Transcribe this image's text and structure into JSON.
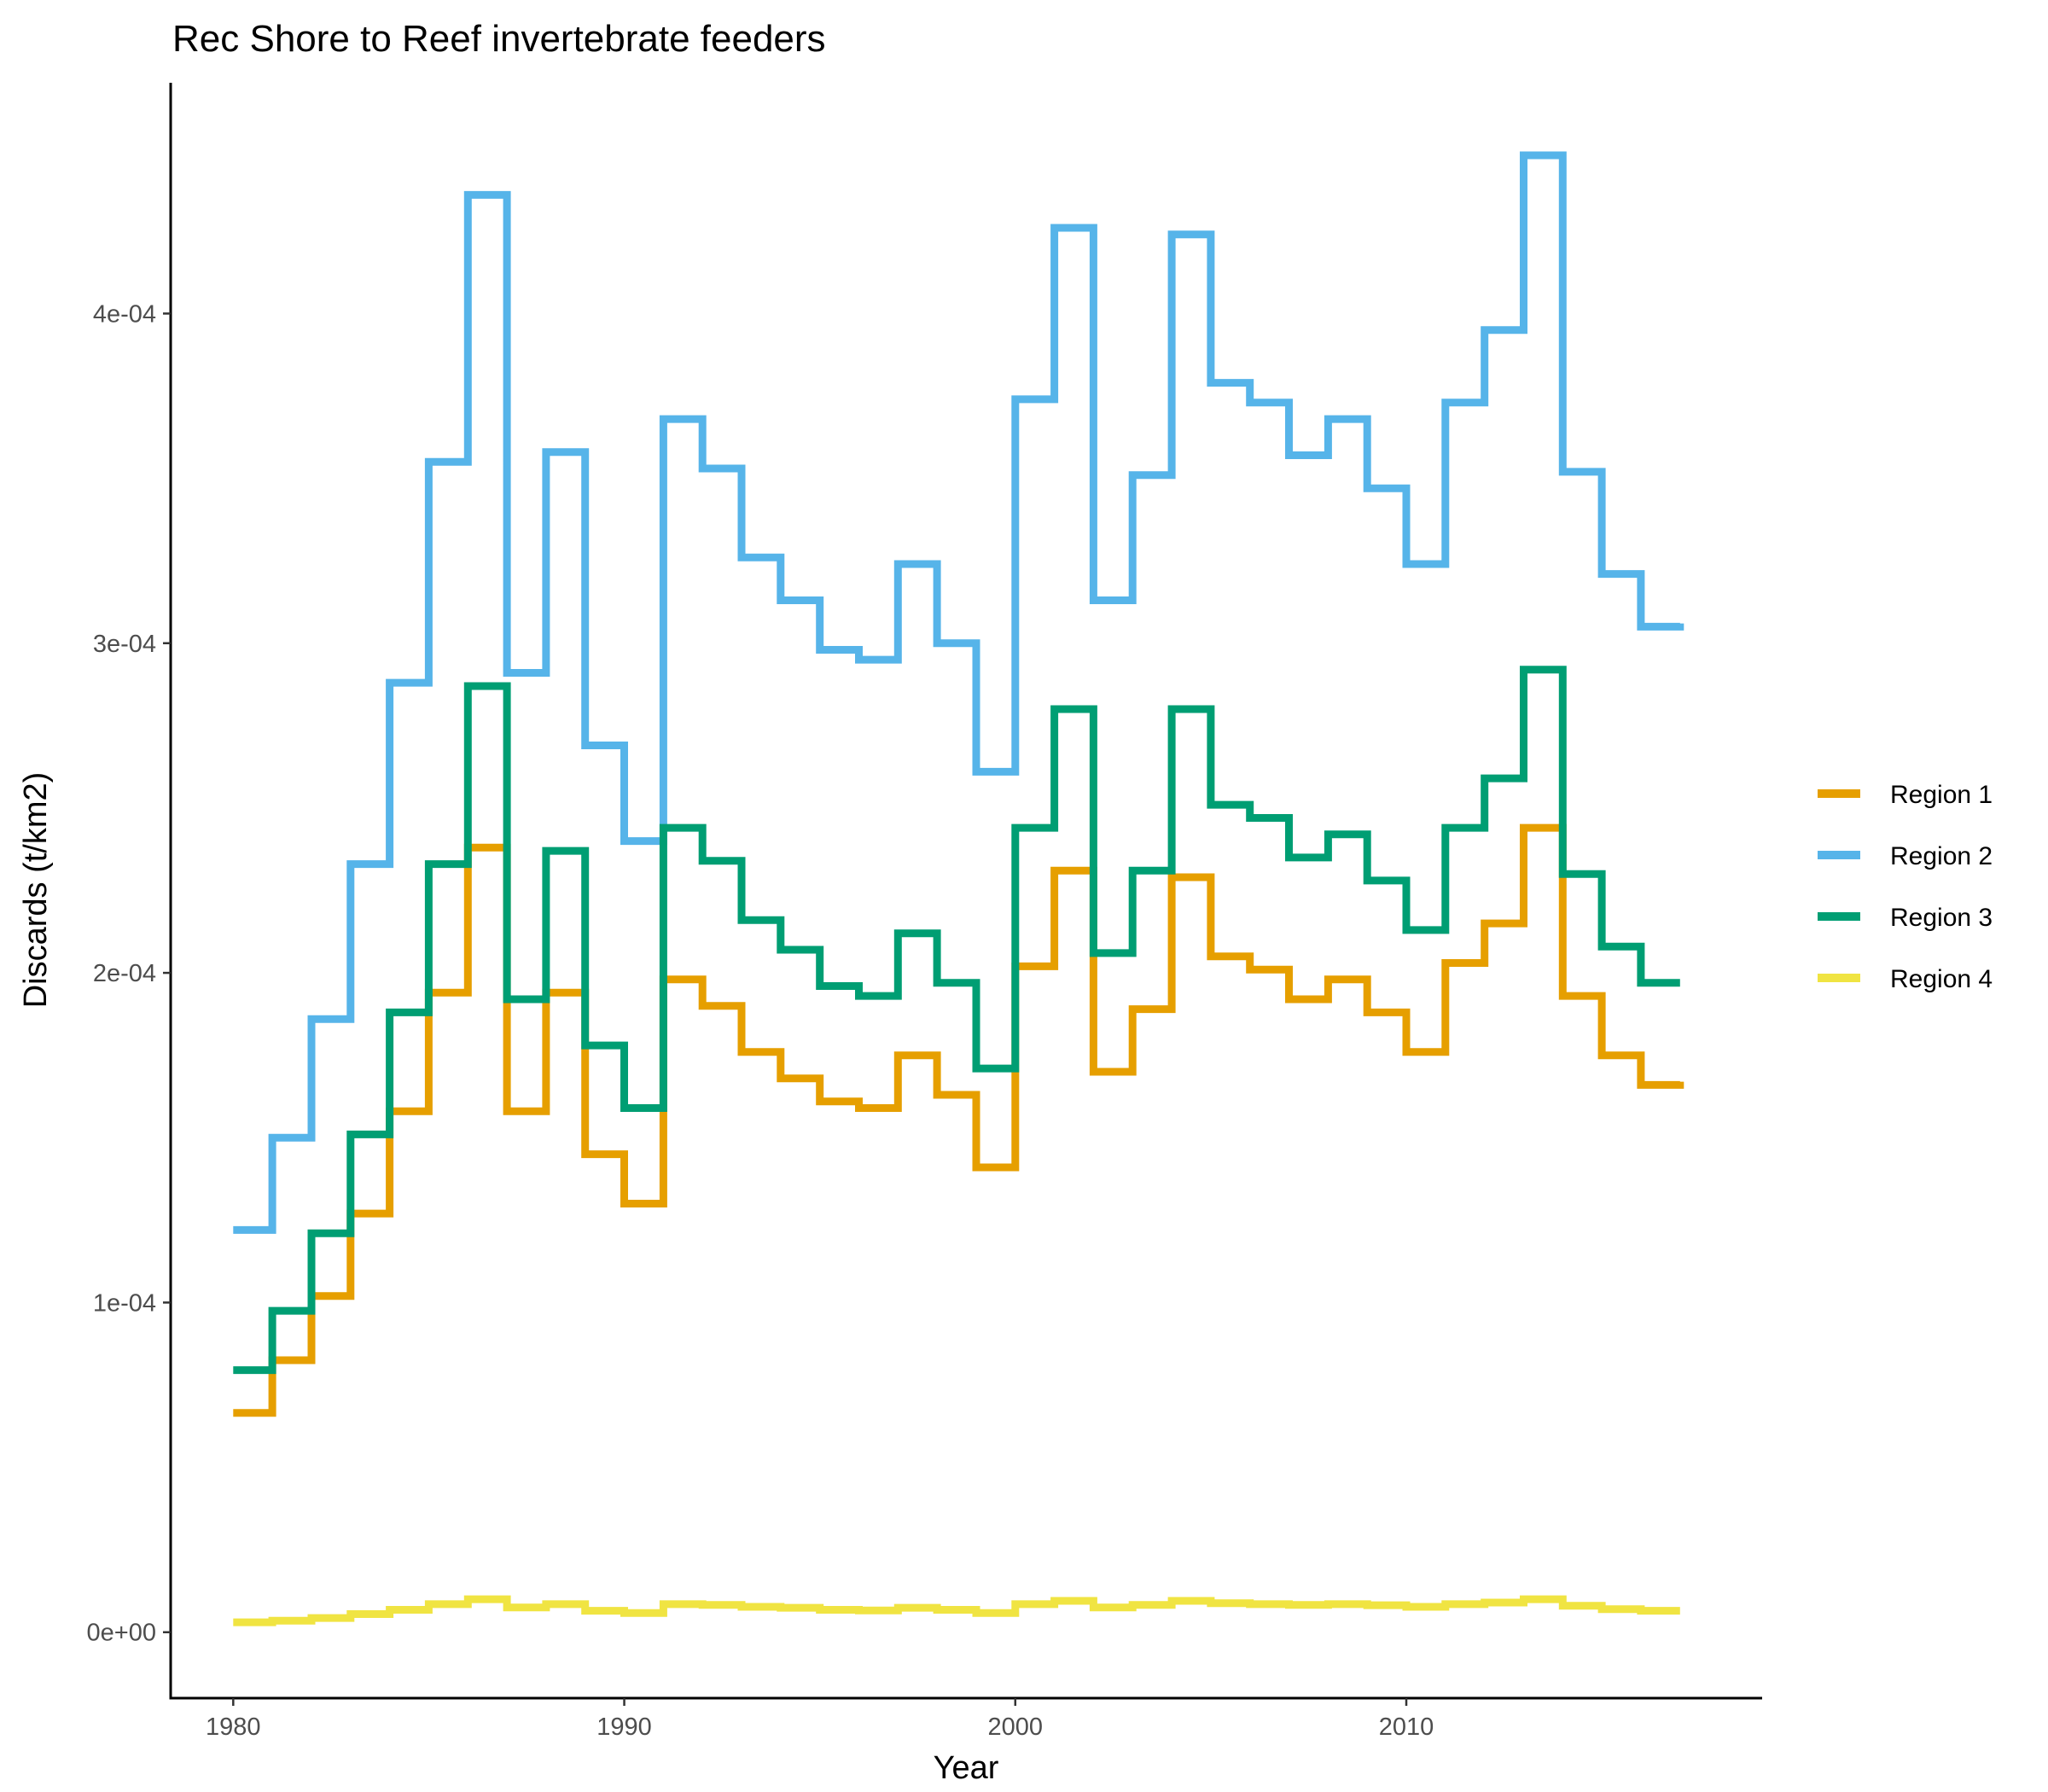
{
  "chart_data": {
    "type": "line",
    "step": true,
    "title": "Rec Shore to Reef invertebrate feeders",
    "xlabel": "Year",
    "ylabel": "Discards (t/km2)",
    "xlim": [
      1978.4,
      2019.1
    ],
    "ylim": [
      -2e-05,
      0.00047
    ],
    "x_ticks": [
      1980,
      1990,
      2000,
      2010
    ],
    "x_tick_labels": [
      "1980",
      "1990",
      "2000",
      "2010"
    ],
    "y_ticks": [
      0,
      0.0001,
      0.0002,
      0.0003,
      0.0004
    ],
    "y_tick_labels": [
      "0e+00",
      "1e-04",
      "2e-04",
      "3e-04",
      "4e-04"
    ],
    "grid": false,
    "legend_position": "right",
    "x": [
      1980,
      1981,
      1982,
      1983,
      1984,
      1985,
      1986,
      1987,
      1988,
      1989,
      1990,
      1991,
      1992,
      1993,
      1994,
      1995,
      1996,
      1997,
      1998,
      1999,
      2000,
      2001,
      2002,
      2003,
      2004,
      2005,
      2006,
      2007,
      2008,
      2009,
      2010,
      2011,
      2012,
      2013,
      2014,
      2015,
      2016,
      2017
    ],
    "x_end": 2017,
    "series": [
      {
        "name": "Region 1",
        "color": "#E69F00",
        "values": [
          6.65e-05,
          8.25e-05,
          0.000102,
          0.000127,
          0.000158,
          0.000194,
          0.000238,
          0.000158,
          0.000194,
          0.000145,
          0.00013,
          0.000198,
          0.00019,
          0.000176,
          0.000168,
          0.000161,
          0.000159,
          0.000175,
          0.000163,
          0.000141,
          0.000202,
          0.000231,
          0.00017,
          0.000189,
          0.000229,
          0.000205,
          0.000201,
          0.000192,
          0.000198,
          0.000188,
          0.000176,
          0.000203,
          0.000215,
          0.000244,
          0.000193,
          0.000175,
          0.000166,
          0.000167
        ]
      },
      {
        "name": "Region 2",
        "color": "#56B4E9",
        "values": [
          0.000122,
          0.00015,
          0.000186,
          0.000233,
          0.000288,
          0.000355,
          0.000436,
          0.000291,
          0.000358,
          0.000269,
          0.00024,
          0.000368,
          0.000353,
          0.000326,
          0.000313,
          0.000298,
          0.000295,
          0.000324,
          0.0003,
          0.000261,
          0.000374,
          0.000426,
          0.000313,
          0.000351,
          0.000424,
          0.000379,
          0.000373,
          0.000357,
          0.000368,
          0.000347,
          0.000324,
          0.000373,
          0.000395,
          0.000448,
          0.000352,
          0.000321,
          0.000305,
          0.000306
        ]
      },
      {
        "name": "Region 3",
        "color": "#009E73",
        "values": [
          7.95e-05,
          9.75e-05,
          0.000121,
          0.000151,
          0.000188,
          0.000233,
          0.000287,
          0.000192,
          0.000237,
          0.000178,
          0.000159,
          0.000244,
          0.000234,
          0.000216,
          0.000207,
          0.000196,
          0.000193,
          0.000212,
          0.000197,
          0.000171,
          0.000244,
          0.00028,
          0.000206,
          0.000231,
          0.00028,
          0.000251,
          0.000247,
          0.000235,
          0.000242,
          0.000228,
          0.000213,
          0.000244,
          0.000259,
          0.000292,
          0.00023,
          0.000208,
          0.000197,
          0.000197
        ]
      },
      {
        "name": "Region 4",
        "color": "#F0E442",
        "values": [
          3e-06,
          3.5e-06,
          4.3e-06,
          5.5e-06,
          6.8e-06,
          8.5e-06,
          1e-05,
          7.5e-06,
          8.5e-06,
          6.5e-06,
          5.8e-06,
          8.5e-06,
          8.3e-06,
          7.7e-06,
          7.4e-06,
          6.8e-06,
          6.6e-06,
          7.4e-06,
          6.8e-06,
          5.8e-06,
          8.5e-06,
          9.5e-06,
          7.5e-06,
          8.3e-06,
          9.5e-06,
          8.8e-06,
          8.5e-06,
          8.3e-06,
          8.5e-06,
          8.2e-06,
          7.7e-06,
          8.5e-06,
          9e-06,
          1e-05,
          8e-06,
          7e-06,
          6.5e-06,
          6.5e-06
        ]
      }
    ]
  }
}
